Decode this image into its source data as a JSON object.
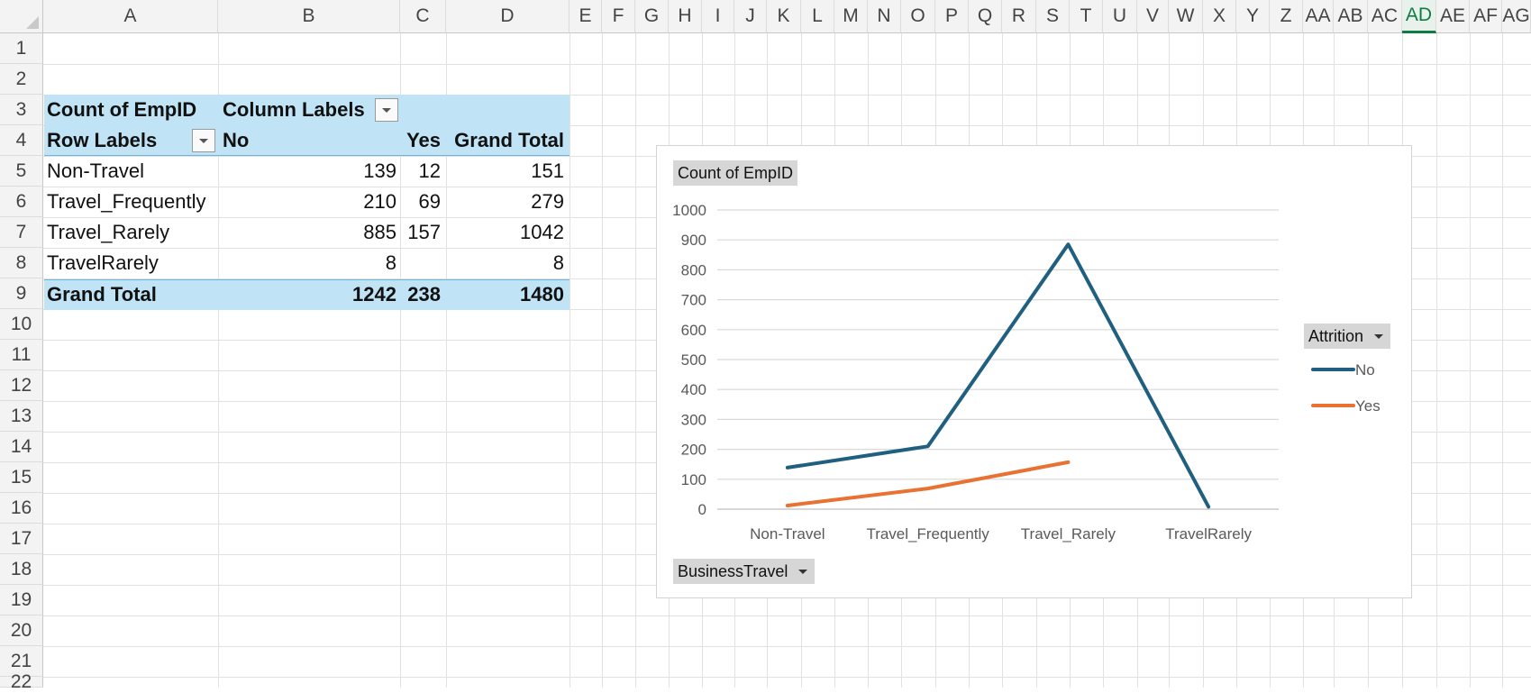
{
  "sheet": {
    "columns": [
      "A",
      "B",
      "C",
      "D",
      "E",
      "F",
      "G",
      "H",
      "I",
      "J",
      "K",
      "L",
      "M",
      "N",
      "O",
      "P",
      "Q",
      "R",
      "S",
      "T",
      "U",
      "V",
      "W",
      "X",
      "Y",
      "Z",
      "AA",
      "AB",
      "AC",
      "AD",
      "AE",
      "AF",
      "AG"
    ],
    "selected_column": "AD",
    "rows": [
      "1",
      "2",
      "3",
      "4",
      "5",
      "6",
      "7",
      "8",
      "9",
      "10",
      "11",
      "12",
      "13",
      "14",
      "15",
      "16",
      "17",
      "18",
      "19",
      "20",
      "21",
      "22"
    ]
  },
  "pivot": {
    "values_label": "Count of EmpID",
    "column_labels": "Column Labels",
    "row_labels": "Row Labels",
    "headers": [
      "No",
      "Yes",
      "Grand Total"
    ],
    "rows": [
      {
        "label": "Non-Travel",
        "no": "139",
        "yes": "12",
        "total": "151"
      },
      {
        "label": "Travel_Frequently",
        "no": "210",
        "yes": "69",
        "total": "279"
      },
      {
        "label": "Travel_Rarely",
        "no": "885",
        "yes": "157",
        "total": "1042"
      },
      {
        "label": "TravelRarely",
        "no": "8",
        "yes": "",
        "total": "8"
      }
    ],
    "grand_total": {
      "label": "Grand Total",
      "no": "1242",
      "yes": "238",
      "total": "1480"
    }
  },
  "chart": {
    "value_field_button": "Count of EmpID",
    "axis_field_button": "BusinessTravel",
    "legend_field_button": "Attrition"
  },
  "chart_data": {
    "type": "line",
    "categories": [
      "Non-Travel",
      "Travel_Frequently",
      "Travel_Rarely",
      "TravelRarely"
    ],
    "series": [
      {
        "name": "No",
        "values": [
          139,
          210,
          885,
          8
        ],
        "color": "#1f5f7f"
      },
      {
        "name": "Yes",
        "values": [
          12,
          69,
          157,
          null
        ],
        "color": "#e97132"
      }
    ],
    "ylim": [
      0,
      1000
    ],
    "yticks": [
      0,
      100,
      200,
      300,
      400,
      500,
      600,
      700,
      800,
      900,
      1000
    ],
    "grid": true,
    "legend": "right"
  }
}
